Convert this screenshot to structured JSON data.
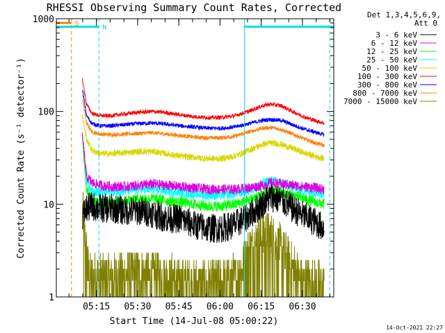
{
  "chart_data": {
    "type": "line",
    "title": "RHESSI Observing Summary Count Rates, Corrected",
    "xlabel": "Start Time (14-Jul-08 05:00:22)",
    "ylabel": "Corrected Count Rate (s⁻¹ detector⁻¹)",
    "yscale": "log",
    "ylim": [
      1,
      1000
    ],
    "xlim_minutes": [
      0,
      101
    ],
    "x_unit": "minutes after 05:00:22",
    "x_ticks": [
      {
        "label": "05:15",
        "minute": 14.6
      },
      {
        "label": "05:30",
        "minute": 29.6
      },
      {
        "label": "05:45",
        "minute": 44.6
      },
      {
        "label": "06:00",
        "minute": 59.6
      },
      {
        "label": "06:15",
        "minute": 74.6
      },
      {
        "label": "06:30",
        "minute": 89.6
      }
    ],
    "y_ticks": [
      {
        "label": "1",
        "value": 1
      },
      {
        "label": "10",
        "value": 10
      },
      {
        "label": "100",
        "value": 100
      },
      {
        "label": "1000",
        "value": 1000
      }
    ],
    "legend_header": [
      "Det 1,3,4,5,6,9,",
      "Att 0"
    ],
    "legend_position": "top-right, outside plot",
    "series": [
      {
        "name": "3 - 6 keV",
        "color": "#000000",
        "x": [
          9.5,
          11,
          13,
          16,
          20,
          25,
          30,
          35,
          40,
          45,
          50,
          55,
          60,
          65,
          70,
          75,
          78,
          82,
          86,
          90,
          94,
          97.5
        ],
        "values": [
          7.5,
          9,
          9.5,
          9,
          9,
          8.5,
          8.5,
          8,
          7,
          7,
          6,
          5.5,
          5.5,
          6,
          7.5,
          10,
          12,
          11,
          9,
          7.5,
          6.5,
          5.5
        ],
        "noise": 0.16
      },
      {
        "name": "6 - 12 keV",
        "color": "#e000e0",
        "x": [
          9.5,
          11,
          13,
          16,
          20,
          25,
          30,
          35,
          40,
          45,
          50,
          55,
          60,
          65,
          70,
          75,
          78,
          82,
          86,
          90,
          94,
          97.5
        ],
        "values": [
          55,
          20,
          17,
          16,
          15.5,
          15.5,
          16,
          16.5,
          16,
          15.5,
          15,
          14.5,
          14.5,
          14.5,
          15,
          16,
          17,
          16.5,
          16,
          15.5,
          15,
          14.5
        ],
        "noise": 0.055
      },
      {
        "name": "12 - 25 keV",
        "color": "#00ff00",
        "x": [
          9.5,
          11,
          13,
          16,
          20,
          25,
          30,
          35,
          40,
          45,
          50,
          55,
          60,
          65,
          70,
          75,
          78,
          82,
          86,
          90,
          94,
          97.5
        ],
        "values": [
          50,
          15,
          10.5,
          10.5,
          10.5,
          11,
          11.5,
          11.5,
          11,
          10.5,
          10,
          9.5,
          9.5,
          10,
          11,
          13,
          14,
          13.5,
          12.5,
          11.5,
          10.5,
          10
        ],
        "noise": 0.06
      },
      {
        "name": "25 - 50 keV",
        "color": "#00ffff",
        "x": [
          9.5,
          11,
          13,
          16,
          20,
          25,
          30,
          35,
          40,
          45,
          50,
          55,
          60,
          65,
          70,
          75,
          78,
          82,
          86,
          90,
          94,
          97.5
        ],
        "values": [
          52,
          18,
          14,
          13.5,
          13.5,
          14,
          14.5,
          14.5,
          14,
          13.5,
          13,
          12.5,
          12.5,
          13,
          14,
          16.5,
          18,
          17,
          15.5,
          14,
          13.5,
          13
        ],
        "noise": 0.055
      },
      {
        "name": "50 - 100 keV",
        "color": "#d8d800",
        "x": [
          9.5,
          11,
          13,
          16,
          20,
          25,
          30,
          35,
          40,
          45,
          50,
          55,
          60,
          65,
          70,
          75,
          78,
          82,
          86,
          90,
          94,
          97.5
        ],
        "values": [
          90,
          50,
          38,
          35,
          35,
          36,
          37,
          37,
          35,
          33,
          32,
          31,
          31,
          33,
          38,
          44,
          46,
          44,
          40,
          36,
          33,
          31
        ],
        "noise": 0.035
      },
      {
        "name": "100 - 300 keV",
        "color": "#ff0000",
        "x": [
          9.5,
          11,
          13,
          16,
          20,
          25,
          30,
          35,
          40,
          45,
          50,
          55,
          60,
          65,
          70,
          75,
          78,
          82,
          86,
          90,
          94,
          97.5
        ],
        "values": [
          220,
          120,
          95,
          90,
          90,
          94,
          98,
          100,
          97,
          92,
          88,
          86,
          86,
          90,
          100,
          115,
          120,
          115,
          100,
          88,
          80,
          75
        ],
        "noise": 0.022
      },
      {
        "name": "300 - 800 keV",
        "color": "#0000ff",
        "x": [
          9.5,
          11,
          13,
          16,
          20,
          25,
          30,
          35,
          40,
          45,
          50,
          55,
          60,
          65,
          70,
          75,
          78,
          82,
          86,
          90,
          94,
          97.5
        ],
        "values": [
          170,
          90,
          74,
          70,
          70,
          72,
          74,
          75,
          73,
          70,
          68,
          66,
          66,
          68,
          74,
          80,
          82,
          80,
          72,
          65,
          60,
          56
        ],
        "noise": 0.022
      },
      {
        "name": "800 - 7000 keV",
        "color": "#ff8000",
        "x": [
          9.5,
          11,
          13,
          16,
          20,
          25,
          30,
          35,
          40,
          45,
          50,
          55,
          60,
          65,
          70,
          75,
          78,
          82,
          86,
          90,
          94,
          97.5
        ],
        "values": [
          140,
          75,
          60,
          57,
          56,
          57,
          58,
          59,
          57,
          55,
          53,
          52,
          52,
          54,
          60,
          66,
          67,
          64,
          57,
          51,
          46,
          43
        ],
        "noise": 0.022
      },
      {
        "name": "7000 - 15000 keV",
        "color": "#808000",
        "x": [
          9.5,
          10.5,
          11.5,
          12,
          20,
          30,
          40,
          50,
          60,
          65,
          68,
          70,
          72,
          74,
          76,
          78,
          80,
          82,
          84,
          86,
          88,
          90,
          94,
          97.5
        ],
        "values": [
          8,
          4,
          2,
          1.5,
          1.5,
          1.7,
          1.5,
          1.3,
          1.3,
          1.5,
          2,
          3,
          3.5,
          4.2,
          4.5,
          4.2,
          3.5,
          3,
          2.5,
          2,
          1.6,
          1.4,
          1.3,
          1.2
        ],
        "noise": 0.3,
        "quantized": true
      }
    ],
    "flag_lines": [
      {
        "label": "S",
        "color": "#ff8000",
        "segments": [
          [
            0,
            5.5
          ]
        ],
        "level": 900
      },
      {
        "label": "N",
        "color": "#00e0e0",
        "segments": [
          [
            0,
            15.5
          ],
          [
            68.5,
            101
          ]
        ],
        "level": 820
      }
    ],
    "vertical_markers": [
      {
        "minute": 5.5,
        "color": "#ff8000",
        "style": "dashed"
      },
      {
        "minute": 15.5,
        "color": "#00e0e0",
        "style": "dashed"
      },
      {
        "minute": 68.5,
        "color": "#00e0e0",
        "style": "solid"
      },
      {
        "minute": 99.5,
        "color": "#00e0e0",
        "style": "dashed"
      }
    ],
    "timestamp": "14-Oct-2021 22:27"
  }
}
